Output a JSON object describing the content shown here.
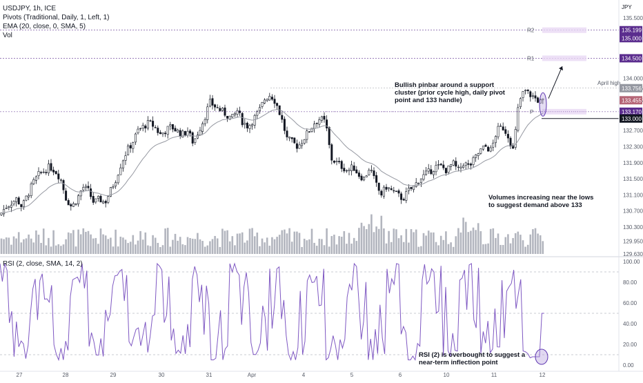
{
  "header": {
    "symbol_line": "USDJPY, 1h, ICE",
    "pivots_line": "Pivots (Traditional, Daily, 1, Left, 1)",
    "ema_line": "EMA (20, close, 0, SMA, 5)",
    "vol_line": "Vol",
    "currency": "JPY"
  },
  "chart_data": [
    {
      "type": "candlestick",
      "title": "USDJPY, 1h, ICE",
      "ylim": [
        129.63,
        135.95
      ],
      "yticks": [
        "135.500",
        "134.000",
        "133.756",
        "133.455",
        "132.700",
        "132.300",
        "131.900",
        "131.500",
        "131.100",
        "130.700",
        "130.300",
        "129.950",
        "129.630"
      ],
      "xticks": [
        "27",
        "28",
        "29",
        "30",
        "31",
        "Apr",
        "4",
        "5",
        "6",
        "10",
        "11",
        "12"
      ],
      "pivots": [
        {
          "label": "R2",
          "value": 135.199
        },
        {
          "label": "R1",
          "value": 134.5
        },
        {
          "label": "P",
          "value": 133.17
        }
      ],
      "price_tags": [
        {
          "value": "135.199",
          "color": "#5b2d8e"
        },
        {
          "value": "135.000",
          "color": "#5b2d8e"
        },
        {
          "value": "134.500",
          "color": "#5b2d8e"
        },
        {
          "value": "133.756",
          "color": "#9598a1"
        },
        {
          "value": "133.455",
          "color": "#b56576"
        },
        {
          "value": "133.170",
          "color": "#5b2d8e"
        },
        {
          "value": "133.000",
          "color": "#131722"
        }
      ],
      "level_labels": {
        "april_high": "April high"
      },
      "annotations": [
        "Bullish pinbar around a support cluster (prior cycle high, daily pivot point and 133 handle)",
        "Volumes increasing near the lows to suggest demand above 133"
      ],
      "close_path": [
        [
          0,
          130.6
        ],
        [
          8,
          130.8
        ],
        [
          16,
          130.9
        ],
        [
          24,
          131.0
        ],
        [
          32,
          130.8
        ],
        [
          40,
          131.1
        ],
        [
          48,
          131.4
        ],
        [
          56,
          131.6
        ],
        [
          64,
          131.7
        ],
        [
          72,
          131.8
        ],
        [
          80,
          131.7
        ],
        [
          88,
          131.5
        ],
        [
          96,
          131.0
        ],
        [
          104,
          130.8
        ],
        [
          112,
          131.0
        ],
        [
          120,
          131.3
        ],
        [
          128,
          131.2
        ],
        [
          136,
          130.9
        ],
        [
          144,
          131.0
        ],
        [
          152,
          130.9
        ],
        [
          160,
          131.2
        ],
        [
          168,
          131.5
        ],
        [
          176,
          131.9
        ],
        [
          184,
          132.2
        ],
        [
          192,
          132.4
        ],
        [
          200,
          132.7
        ],
        [
          208,
          132.8
        ],
        [
          216,
          132.9
        ],
        [
          224,
          132.8
        ],
        [
          232,
          132.6
        ],
        [
          240,
          132.7
        ],
        [
          248,
          132.8
        ],
        [
          256,
          132.7
        ],
        [
          264,
          132.6
        ],
        [
          272,
          132.7
        ],
        [
          280,
          132.4
        ],
        [
          288,
          132.7
        ],
        [
          296,
          133.0
        ],
        [
          304,
          133.4
        ],
        [
          312,
          133.3
        ],
        [
          320,
          133.2
        ],
        [
          328,
          133.1
        ],
        [
          336,
          133.0
        ],
        [
          344,
          133.2
        ],
        [
          352,
          132.9
        ],
        [
          360,
          132.8
        ],
        [
          368,
          133.0
        ],
        [
          376,
          133.2
        ],
        [
          384,
          133.5
        ],
        [
          392,
          133.6
        ],
        [
          400,
          133.4
        ],
        [
          408,
          133.0
        ],
        [
          416,
          132.5
        ],
        [
          424,
          132.4
        ],
        [
          432,
          132.3
        ],
        [
          440,
          132.5
        ],
        [
          448,
          132.7
        ],
        [
          456,
          132.9
        ],
        [
          464,
          133.0
        ],
        [
          472,
          132.9
        ],
        [
          480,
          132.0
        ],
        [
          488,
          131.9
        ],
        [
          496,
          131.8
        ],
        [
          504,
          131.7
        ],
        [
          512,
          131.8
        ],
        [
          520,
          131.6
        ],
        [
          528,
          131.5
        ],
        [
          536,
          131.8
        ],
        [
          544,
          131.4
        ],
        [
          552,
          131.1
        ],
        [
          560,
          131.3
        ],
        [
          568,
          131.2
        ],
        [
          576,
          131.1
        ],
        [
          584,
          131.0
        ],
        [
          592,
          131.2
        ],
        [
          600,
          131.3
        ],
        [
          608,
          131.5
        ],
        [
          616,
          131.6
        ],
        [
          624,
          131.7
        ],
        [
          632,
          131.8
        ],
        [
          640,
          131.8
        ],
        [
          648,
          131.7
        ],
        [
          656,
          131.9
        ],
        [
          664,
          131.7
        ],
        [
          672,
          131.9
        ],
        [
          680,
          131.8
        ],
        [
          688,
          132.0
        ],
        [
          696,
          132.2
        ],
        [
          704,
          132.3
        ],
        [
          712,
          132.2
        ],
        [
          720,
          132.7
        ],
        [
          728,
          132.8
        ],
        [
          736,
          132.6
        ],
        [
          744,
          132.2
        ],
        [
          752,
          133.4
        ],
        [
          760,
          133.7
        ],
        [
          768,
          133.6
        ],
        [
          776,
          133.5
        ],
        [
          784,
          133.4
        ],
        [
          790,
          133.455
        ]
      ]
    },
    {
      "type": "line",
      "title": "RSI (2, close, SMA, 14, 2)",
      "ylim": [
        -2,
        102
      ],
      "yticks": [
        "100.00",
        "80.00",
        "60.00",
        "40.00",
        "20.00",
        "0.00"
      ],
      "levels": [
        90,
        10,
        50
      ],
      "annotations": [
        "RSI (2) is overbought to suggest a near-term inflection point"
      ]
    }
  ],
  "colors": {
    "ema": "#9598a1",
    "candle": "#131722",
    "volume": "#b2b5be",
    "rsi": "#7e57c2",
    "pivot_line": "#5b2d8e"
  }
}
